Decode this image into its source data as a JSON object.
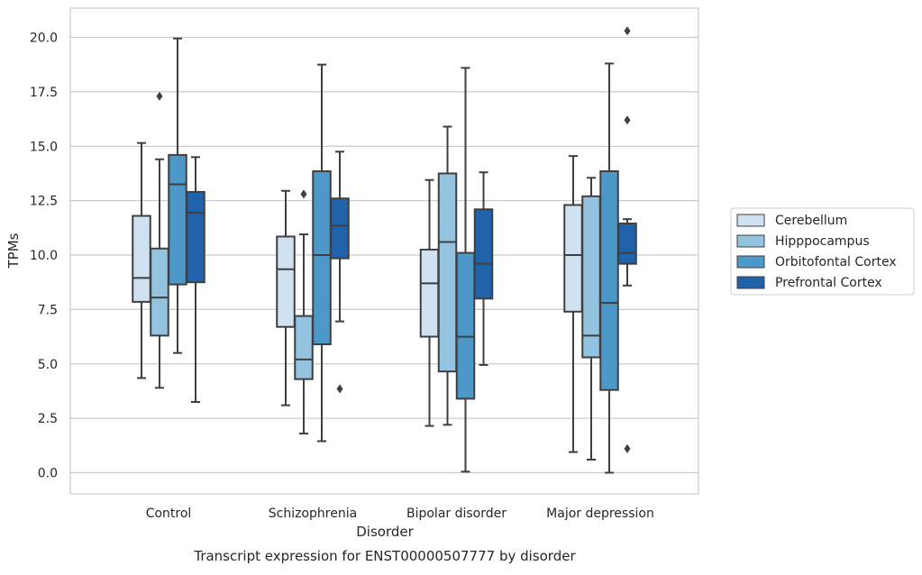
{
  "chart_data": {
    "type": "boxplot",
    "caption": "Transcript expression for ENST00000507777 by disorder",
    "xlabel": "Disorder",
    "ylabel": "TPMs",
    "ylim": [
      -1.0,
      21.3
    ],
    "yticks": [
      "0.0",
      "2.5",
      "5.0",
      "7.5",
      "10.0",
      "12.5",
      "15.0",
      "17.5",
      "20.0"
    ],
    "ytick_values": [
      0,
      2.5,
      5,
      7.5,
      10,
      12.5,
      15,
      17.5,
      20
    ],
    "grid": true,
    "legend_position": "right",
    "categories": [
      "Control",
      "Schizophrenia",
      "Bipolar disorder",
      "Major depression"
    ],
    "series": [
      {
        "name": "Cerebellum",
        "color": "#d0e1f2",
        "boxes": [
          {
            "whislo": 4.35,
            "q1": 7.85,
            "med": 8.95,
            "q3": 11.8,
            "whishi": 15.15,
            "fliers": []
          },
          {
            "whislo": 3.1,
            "q1": 6.7,
            "med": 9.35,
            "q3": 10.85,
            "whishi": 12.95,
            "fliers": []
          },
          {
            "whislo": 2.15,
            "q1": 6.25,
            "med": 8.7,
            "q3": 10.25,
            "whishi": 13.45,
            "fliers": []
          },
          {
            "whislo": 0.95,
            "q1": 7.4,
            "med": 10.0,
            "q3": 12.3,
            "whishi": 14.55,
            "fliers": []
          }
        ]
      },
      {
        "name": "Hipppocampus",
        "color": "#94c4df",
        "boxes": [
          {
            "whislo": 3.9,
            "q1": 6.3,
            "med": 8.05,
            "q3": 10.3,
            "whishi": 14.4,
            "fliers": [
              17.3
            ]
          },
          {
            "whislo": 1.8,
            "q1": 4.3,
            "med": 5.2,
            "q3": 7.2,
            "whishi": 10.95,
            "fliers": [
              12.8
            ]
          },
          {
            "whislo": 2.2,
            "q1": 4.65,
            "med": 10.6,
            "q3": 13.75,
            "whishi": 15.9,
            "fliers": []
          },
          {
            "whislo": 0.6,
            "q1": 5.3,
            "med": 6.3,
            "q3": 12.7,
            "whishi": 13.55,
            "fliers": []
          }
        ]
      },
      {
        "name": "Orbitofontal Cortex",
        "color": "#4b98c9",
        "boxes": [
          {
            "whislo": 5.5,
            "q1": 8.65,
            "med": 13.25,
            "q3": 14.6,
            "whishi": 19.95,
            "fliers": []
          },
          {
            "whislo": 1.45,
            "q1": 5.9,
            "med": 10.0,
            "q3": 13.85,
            "whishi": 18.75,
            "fliers": []
          },
          {
            "whislo": 0.05,
            "q1": 3.4,
            "med": 6.25,
            "q3": 10.1,
            "whishi": 18.6,
            "fliers": []
          },
          {
            "whislo": 0.0,
            "q1": 3.8,
            "med": 7.8,
            "q3": 13.85,
            "whishi": 18.8,
            "fliers": []
          }
        ]
      },
      {
        "name": "Prefrontal Cortex",
        "color": "#2163aa",
        "boxes": [
          {
            "whislo": 3.25,
            "q1": 8.75,
            "med": 11.95,
            "q3": 12.9,
            "whishi": 14.5,
            "fliers": []
          },
          {
            "whislo": 6.95,
            "q1": 9.85,
            "med": 11.35,
            "q3": 12.6,
            "whishi": 14.75,
            "fliers": [
              3.85
            ]
          },
          {
            "whislo": 4.95,
            "q1": 8.0,
            "med": 9.6,
            "q3": 12.1,
            "whishi": 13.8,
            "fliers": []
          },
          {
            "whislo": 8.6,
            "q1": 9.6,
            "med": 10.1,
            "q3": 11.45,
            "whishi": 11.65,
            "fliers": [
              20.3,
              16.2,
              1.1
            ]
          }
        ]
      }
    ]
  }
}
